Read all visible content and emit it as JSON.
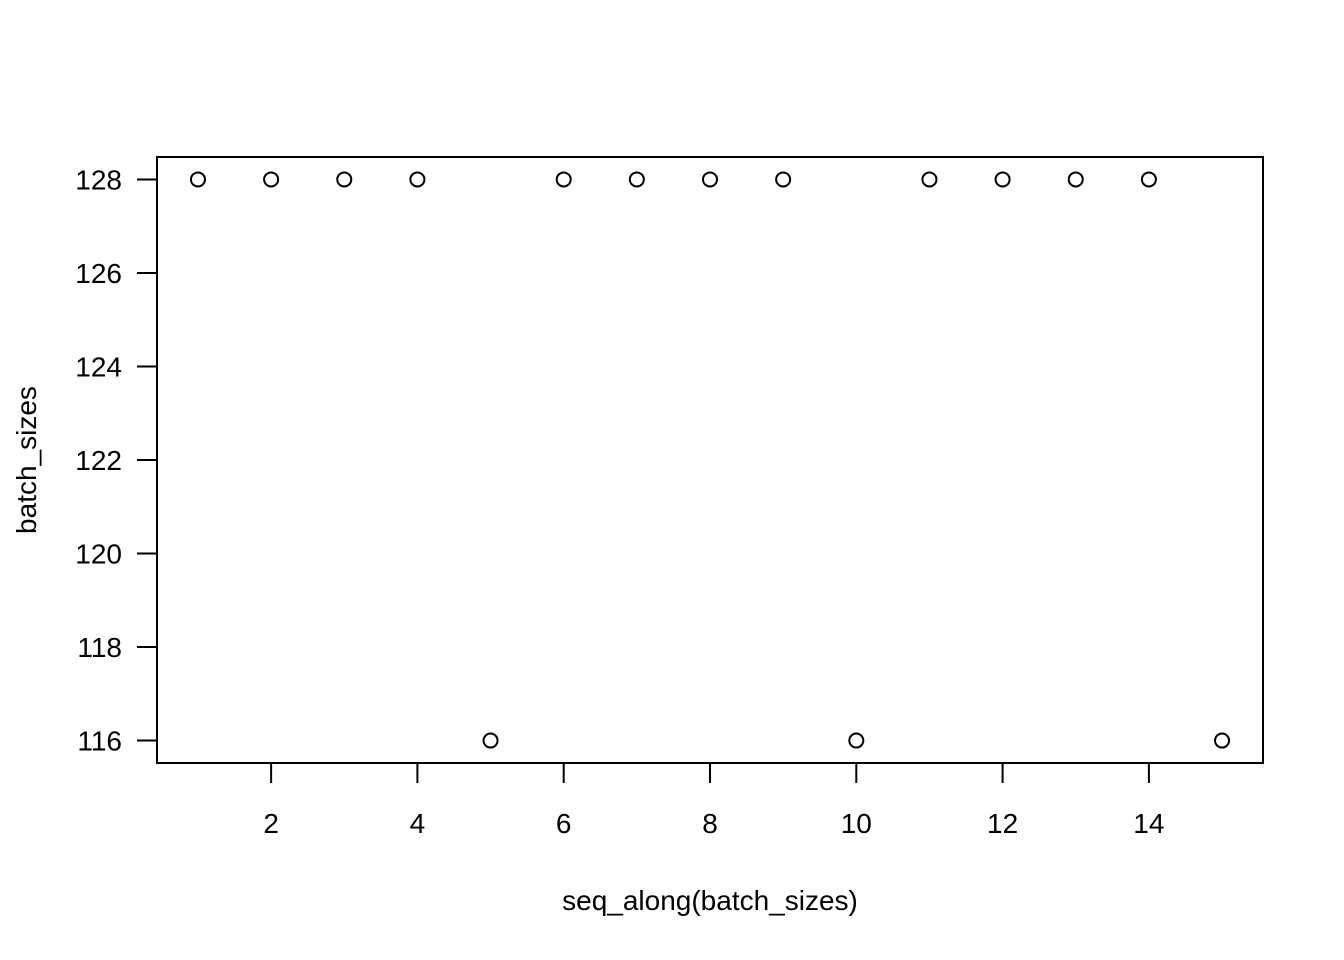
{
  "chart_data": {
    "type": "scatter",
    "title": "",
    "xlabel": "seq_along(batch_sizes)",
    "ylabel": "batch_sizes",
    "x": [
      1,
      2,
      3,
      4,
      5,
      6,
      7,
      8,
      9,
      10,
      11,
      12,
      13,
      14,
      15
    ],
    "y": [
      128,
      128,
      128,
      128,
      116,
      128,
      128,
      128,
      128,
      116,
      128,
      128,
      128,
      128,
      116
    ],
    "xlim": [
      0.44,
      15.56
    ],
    "ylim": [
      115.52,
      128.48
    ],
    "xticks": [
      2,
      4,
      6,
      8,
      10,
      12,
      14
    ],
    "yticks": [
      116,
      118,
      120,
      122,
      124,
      126,
      128
    ],
    "marker": "open-circle",
    "grid": false,
    "legend": "none",
    "colors": {
      "points": "#000000",
      "axes": "#000000",
      "background": "#ffffff"
    }
  }
}
